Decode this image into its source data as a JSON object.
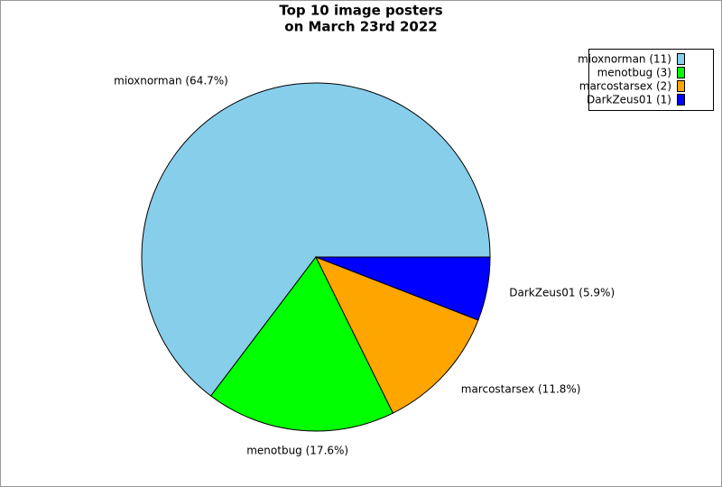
{
  "chart_data": {
    "type": "pie",
    "title": [
      "Top 10 image posters",
      "on March 23rd 2022"
    ],
    "categories": [
      "mioxnorman",
      "menotbug",
      "marcostarsex",
      "DarkZeus01"
    ],
    "values": [
      64.7,
      17.6,
      11.8,
      5.9
    ],
    "value_labels": [
      "mioxnorman (64.7%)",
      "menotbug (17.6%)",
      "marcostarsex (11.8%)",
      "DarkZeus01 (5.9%)"
    ],
    "legend_labels": [
      "mioxnorman (11)",
      "menotbug (3)",
      "marcostarsex (2)",
      "DarkZeus01 (1)"
    ],
    "colors": [
      "#87ceeb",
      "#00ff00",
      "#ffa500",
      "#0000ff"
    ],
    "legend": "upper right"
  }
}
